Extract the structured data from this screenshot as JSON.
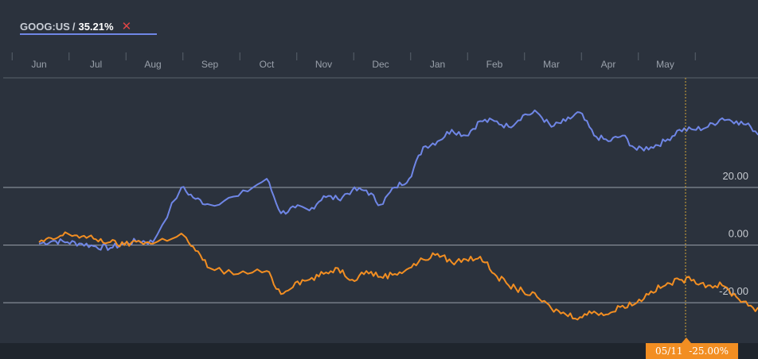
{
  "legend": {
    "ticker": "GOOG:US",
    "separator": "/",
    "value": "35.21%",
    "close_glyph": "✕"
  },
  "tooltip": {
    "date": "05/11",
    "value": "-25.00%"
  },
  "colors": {
    "background": "#2b323d",
    "series_blue": "#6f86e6",
    "series_orange": "#f28e22",
    "grid": "#9aa1ab",
    "cursor": "#d4a737"
  },
  "chart_data": {
    "type": "line",
    "x_tick_labels": [
      "Jun",
      "Jul",
      "Aug",
      "Sep",
      "Oct",
      "Nov",
      "Dec",
      "Jan",
      "Feb",
      "Mar",
      "Apr",
      "May"
    ],
    "y_ticks": [
      20,
      0,
      -20
    ],
    "y_tick_labels": [
      "20.00",
      "0.00",
      "-20.00"
    ],
    "ylim": [
      -34,
      58
    ],
    "grid": true,
    "series": [
      {
        "key": "blue",
        "name": "GOOG:US",
        "color": "#6f86e6",
        "values": [
          [
            0,
            0.5
          ],
          [
            0.25,
            1.5
          ],
          [
            0.5,
            1
          ],
          [
            0.75,
            0.5
          ],
          [
            1,
            -0.5
          ],
          [
            1.25,
            -1
          ],
          [
            1.5,
            0.5
          ],
          [
            1.75,
            1.5
          ],
          [
            2,
            1
          ],
          [
            2.5,
            20
          ],
          [
            2.75,
            16
          ],
          [
            3,
            14
          ],
          [
            3.5,
            17
          ],
          [
            4,
            23
          ],
          [
            4.25,
            11
          ],
          [
            4.5,
            13
          ],
          [
            4.75,
            12
          ],
          [
            5,
            17
          ],
          [
            5.25,
            16
          ],
          [
            5.5,
            19
          ],
          [
            5.75,
            19
          ],
          [
            6,
            14
          ],
          [
            6.25,
            20
          ],
          [
            6.5,
            23
          ],
          [
            6.75,
            34
          ],
          [
            7,
            36
          ],
          [
            7.25,
            40
          ],
          [
            7.5,
            38
          ],
          [
            7.75,
            43
          ],
          [
            8,
            43
          ],
          [
            8.25,
            41
          ],
          [
            8.5,
            45
          ],
          [
            8.75,
            46
          ],
          [
            9,
            41
          ],
          [
            9.25,
            43
          ],
          [
            9.5,
            46
          ],
          [
            9.75,
            38
          ],
          [
            10,
            36
          ],
          [
            10.25,
            38
          ],
          [
            10.5,
            33
          ],
          [
            10.75,
            34
          ],
          [
            11,
            36
          ],
          [
            11.25,
            40
          ],
          [
            11.5,
            40
          ],
          [
            11.75,
            41
          ],
          [
            12,
            44
          ],
          [
            12.25,
            43
          ],
          [
            12.5,
            41
          ],
          [
            12.75,
            37
          ],
          [
            13,
            36
          ],
          [
            13.25,
            35
          ],
          [
            13.5,
            35.21
          ]
        ]
      },
      {
        "key": "orange",
        "name": "",
        "color": "#f28e22",
        "values": [
          [
            0,
            1
          ],
          [
            0.25,
            2
          ],
          [
            0.5,
            4
          ],
          [
            0.75,
            3
          ],
          [
            1,
            2
          ],
          [
            1.25,
            1
          ],
          [
            1.5,
            0
          ],
          [
            1.75,
            1.5
          ],
          [
            2,
            0.5
          ],
          [
            2.5,
            4
          ],
          [
            2.75,
            -2
          ],
          [
            3,
            -8
          ],
          [
            3.5,
            -10
          ],
          [
            4,
            -9
          ],
          [
            4.25,
            -17
          ],
          [
            4.5,
            -13
          ],
          [
            4.75,
            -12
          ],
          [
            5,
            -10
          ],
          [
            5.25,
            -8
          ],
          [
            5.5,
            -12
          ],
          [
            5.75,
            -9
          ],
          [
            6,
            -11
          ],
          [
            6.25,
            -10
          ],
          [
            6.5,
            -8
          ],
          [
            6.75,
            -5
          ],
          [
            7,
            -3
          ],
          [
            7.25,
            -6
          ],
          [
            7.5,
            -5
          ],
          [
            7.75,
            -4
          ],
          [
            8,
            -10
          ],
          [
            8.25,
            -14
          ],
          [
            8.5,
            -16
          ],
          [
            8.75,
            -18
          ],
          [
            9,
            -22
          ],
          [
            9.25,
            -24
          ],
          [
            9.5,
            -25
          ],
          [
            9.75,
            -23
          ],
          [
            10,
            -24
          ],
          [
            10.25,
            -21
          ],
          [
            10.5,
            -20
          ],
          [
            10.75,
            -16
          ],
          [
            11,
            -14
          ],
          [
            11.25,
            -12
          ],
          [
            11.5,
            -12
          ],
          [
            11.75,
            -14
          ],
          [
            12,
            -14
          ],
          [
            12.25,
            -18
          ],
          [
            12.5,
            -21
          ],
          [
            12.75,
            -24
          ],
          [
            13,
            -25
          ],
          [
            13.25,
            -24
          ],
          [
            13.5,
            -25
          ]
        ]
      }
    ]
  }
}
